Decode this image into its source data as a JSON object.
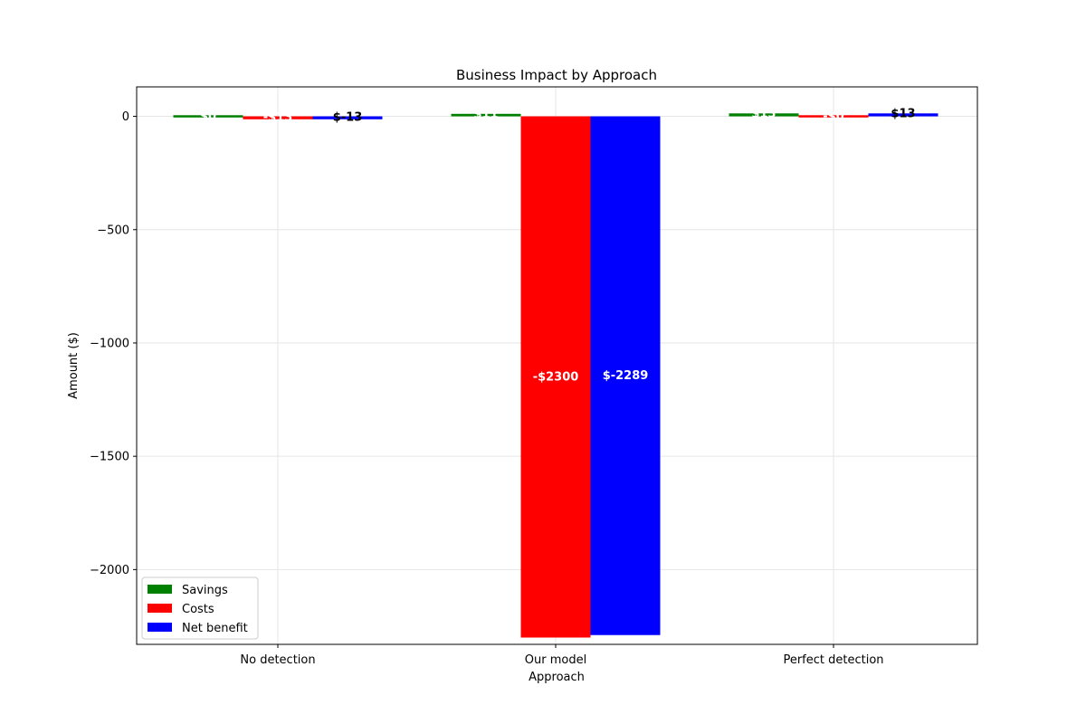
{
  "chart_data": {
    "type": "bar",
    "title": "Business Impact by Approach",
    "xlabel": "Approach",
    "ylabel": "Amount ($)",
    "categories": [
      "No detection",
      "Our model",
      "Perfect detection"
    ],
    "series": [
      {
        "name": "Savings",
        "color": "#008000",
        "values": [
          0,
          11,
          13
        ],
        "labels": [
          "$0",
          "$11",
          "$13"
        ]
      },
      {
        "name": "Costs",
        "color": "#ff0000",
        "values": [
          -13,
          -2300,
          0
        ],
        "labels": [
          "-$13",
          "-$2300",
          "-$0"
        ]
      },
      {
        "name": "Net benefit",
        "color": "#0000ff",
        "values": [
          -13,
          -2289,
          13
        ],
        "labels": [
          "$-13",
          "$-2289",
          "$13"
        ]
      }
    ],
    "ylim": [
      -2330,
      130
    ],
    "yticks": [
      0,
      -500,
      -1000,
      -1500,
      -2000
    ],
    "ytick_labels": [
      "0",
      "−500",
      "−1000",
      "−1500",
      "−2000"
    ],
    "grid": true,
    "legend_position": "lower-left"
  }
}
